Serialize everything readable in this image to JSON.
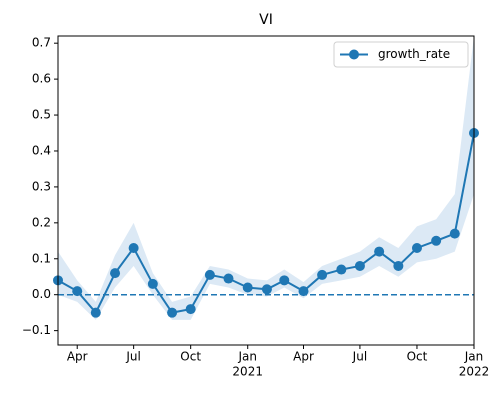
{
  "chart_data": {
    "type": "line",
    "title": "VI",
    "x": [
      "2020-03",
      "2020-04",
      "2020-05",
      "2020-06",
      "2020-07",
      "2020-08",
      "2020-09",
      "2020-10",
      "2020-11",
      "2020-12",
      "2021-01",
      "2021-02",
      "2021-03",
      "2021-04",
      "2021-05",
      "2021-06",
      "2021-07",
      "2021-08",
      "2021-09",
      "2021-10",
      "2021-11",
      "2021-12",
      "2022-01"
    ],
    "series": [
      {
        "name": "growth_rate",
        "color": "#1f77b4",
        "values": [
          0.04,
          0.01,
          -0.05,
          0.06,
          0.13,
          0.03,
          -0.05,
          -0.04,
          0.055,
          0.045,
          0.02,
          0.015,
          0.04,
          0.01,
          0.055,
          0.07,
          0.08,
          0.12,
          0.08,
          0.13,
          0.15,
          0.17,
          0.45
        ]
      }
    ],
    "band": {
      "color": "#dce9f5",
      "lower": [
        0.0,
        -0.02,
        -0.07,
        0.02,
        0.08,
        0.0,
        -0.07,
        -0.07,
        0.03,
        0.02,
        0.0,
        -0.005,
        0.02,
        -0.01,
        0.03,
        0.04,
        0.05,
        0.08,
        0.05,
        0.09,
        0.1,
        0.12,
        0.28
      ],
      "upper": [
        0.12,
        0.04,
        -0.02,
        0.11,
        0.2,
        0.06,
        -0.02,
        -0.005,
        0.08,
        0.07,
        0.045,
        0.04,
        0.07,
        0.035,
        0.08,
        0.1,
        0.12,
        0.16,
        0.13,
        0.19,
        0.21,
        0.28,
        0.72
      ]
    },
    "hline": {
      "value": 0,
      "color": "#1f77b4",
      "dashed": true
    },
    "xlim": [
      "2020-03",
      "2022-01"
    ],
    "xticks": [
      {
        "value": "2020-04",
        "label": "Apr"
      },
      {
        "value": "2020-07",
        "label": "Jul"
      },
      {
        "value": "2020-10",
        "label": "Oct"
      },
      {
        "value": "2021-01",
        "label": "Jan",
        "sublabel": "2021"
      },
      {
        "value": "2021-04",
        "label": "Apr"
      },
      {
        "value": "2021-07",
        "label": "Jul"
      },
      {
        "value": "2021-10",
        "label": "Oct"
      },
      {
        "value": "2022-01",
        "label": "Jan",
        "sublabel": "2022"
      }
    ],
    "ylim": [
      -0.14,
      0.72
    ],
    "yticks": [
      {
        "value": -0.1,
        "label": "−0.1"
      },
      {
        "value": 0,
        "label": "0.0"
      },
      0.1,
      0.2,
      0.3,
      0.4,
      0.5,
      0.6,
      0.7
    ],
    "legend": "upper right",
    "grid": false
  }
}
